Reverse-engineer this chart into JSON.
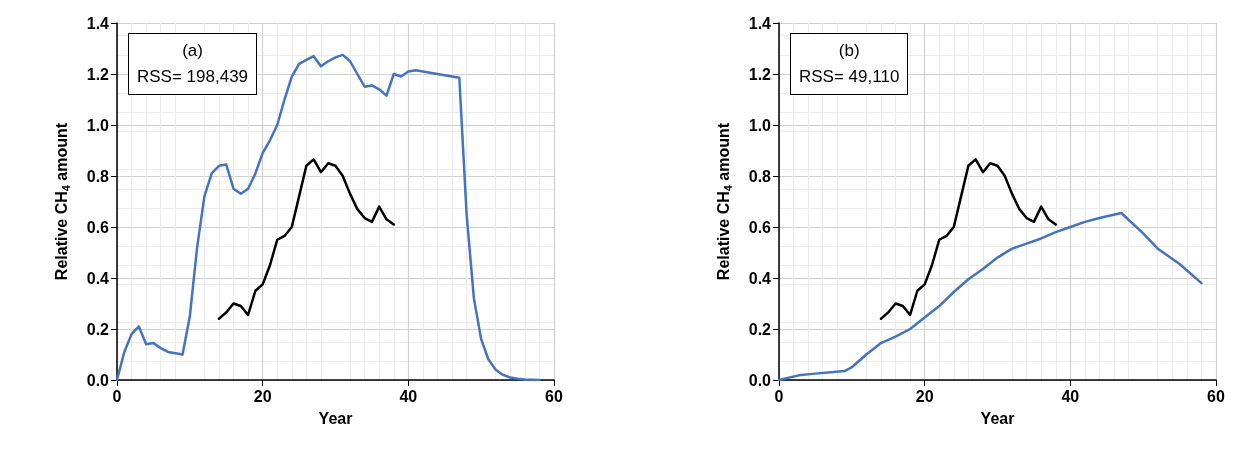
{
  "chart_data": [
    {
      "type": "line",
      "xlabel": "Year",
      "ylabel": "Relative CH$_{4}$ amount",
      "annotations": [
        "(a)",
        "RSS= 198,439"
      ],
      "xlim": [
        0,
        60
      ],
      "xticks": [
        0,
        20,
        40,
        60
      ],
      "ylim": [
        0,
        1.4
      ],
      "yticks": [
        {
          "value": 0,
          "label": "0.0"
        },
        {
          "value": 0.2,
          "label": "0.2"
        },
        {
          "value": 0.4,
          "label": "0.4"
        },
        {
          "value": 0.6,
          "label": "0.6"
        },
        {
          "value": 0.8,
          "label": "0.8"
        },
        {
          "value": 1,
          "label": "1.0"
        },
        {
          "value": 1.2,
          "label": "1.2"
        },
        {
          "value": 1.4,
          "label": "1.4"
        }
      ],
      "grid": true,
      "line_style": "solid",
      "marker": "none",
      "series": [
        {
          "color": "#4472c4",
          "x": [
            0,
            1,
            2,
            3,
            4,
            5,
            6,
            7,
            8,
            9,
            10,
            11,
            12,
            13,
            14,
            15,
            16,
            17,
            18,
            19,
            20,
            21,
            22,
            23,
            24,
            25,
            26,
            27,
            28,
            29,
            30,
            31,
            32,
            33,
            34,
            35,
            36,
            37,
            38,
            39,
            40,
            41,
            42,
            43,
            44,
            45,
            46,
            47,
            48,
            49,
            50,
            51,
            52,
            53,
            54,
            55,
            56,
            57,
            58
          ],
          "values": [
            0,
            0.11,
            0.18,
            0.21,
            0.14,
            0.145,
            0.125,
            0.11,
            0.105,
            0.1,
            0.25,
            0.52,
            0.72,
            0.81,
            0.84,
            0.845,
            0.75,
            0.73,
            0.75,
            0.81,
            0.89,
            0.94,
            1.0,
            1.1,
            1.19,
            1.24,
            1.255,
            1.27,
            1.23,
            1.25,
            1.265,
            1.275,
            1.25,
            1.2,
            1.15,
            1.155,
            1.14,
            1.115,
            1.2,
            1.19,
            1.21,
            1.215,
            1.21,
            1.205,
            1.2,
            1.195,
            1.19,
            1.185,
            0.65,
            0.32,
            0.16,
            0.08,
            0.04,
            0.02,
            0.01,
            0.005,
            0.002,
            0.001,
            0
          ]
        },
        {
          "color": "#000000",
          "x": [
            14,
            15,
            16,
            17,
            18,
            19,
            20,
            21,
            22,
            23,
            24,
            25,
            26,
            27,
            28,
            29,
            30,
            31,
            32,
            33,
            34,
            35,
            36,
            37,
            38
          ],
          "values": [
            0.24,
            0.265,
            0.3,
            0.29,
            0.255,
            0.35,
            0.375,
            0.45,
            0.55,
            0.565,
            0.6,
            0.72,
            0.84,
            0.865,
            0.815,
            0.85,
            0.84,
            0.8,
            0.73,
            0.67,
            0.635,
            0.62,
            0.68,
            0.63,
            0.61
          ]
        }
      ]
    },
    {
      "type": "line",
      "xlabel": "Year",
      "ylabel": "Relative CH$_{4}$ amount",
      "annotations": [
        "(b)",
        "RSS= 49,110"
      ],
      "xlim": [
        0,
        60
      ],
      "xticks": [
        0,
        20,
        40,
        60
      ],
      "ylim": [
        0,
        1.4
      ],
      "yticks": [
        {
          "value": 0,
          "label": "0.0"
        },
        {
          "value": 0.2,
          "label": "0.2"
        },
        {
          "value": 0.4,
          "label": "0.4"
        },
        {
          "value": 0.6,
          "label": "0.6"
        },
        {
          "value": 0.8,
          "label": "0.8"
        },
        {
          "value": 1,
          "label": "1.0"
        },
        {
          "value": 1.2,
          "label": "1.2"
        },
        {
          "value": 1.4,
          "label": "1.4"
        }
      ],
      "grid": true,
      "line_style": "solid",
      "marker": "none",
      "series": [
        {
          "color": "#4472c4",
          "x": [
            0,
            3,
            5,
            9,
            10,
            12,
            14,
            16,
            18,
            20,
            22,
            24,
            26,
            28,
            30,
            32,
            34,
            36,
            38,
            40,
            42,
            44,
            47,
            50,
            52,
            55,
            58
          ],
          "values": [
            0,
            0.02,
            0.025,
            0.035,
            0.05,
            0.1,
            0.145,
            0.17,
            0.2,
            0.245,
            0.29,
            0.345,
            0.395,
            0.435,
            0.48,
            0.515,
            0.535,
            0.555,
            0.58,
            0.6,
            0.62,
            0.635,
            0.655,
            0.575,
            0.515,
            0.455,
            0.38
          ]
        },
        {
          "color": "#000000",
          "x": [
            14,
            15,
            16,
            17,
            18,
            19,
            20,
            21,
            22,
            23,
            24,
            25,
            26,
            27,
            28,
            29,
            30,
            31,
            32,
            33,
            34,
            35,
            36,
            37,
            38
          ],
          "values": [
            0.24,
            0.265,
            0.3,
            0.29,
            0.255,
            0.35,
            0.375,
            0.45,
            0.55,
            0.565,
            0.6,
            0.72,
            0.84,
            0.865,
            0.815,
            0.85,
            0.84,
            0.8,
            0.73,
            0.67,
            0.635,
            0.62,
            0.68,
            0.63,
            0.61
          ]
        }
      ]
    }
  ]
}
